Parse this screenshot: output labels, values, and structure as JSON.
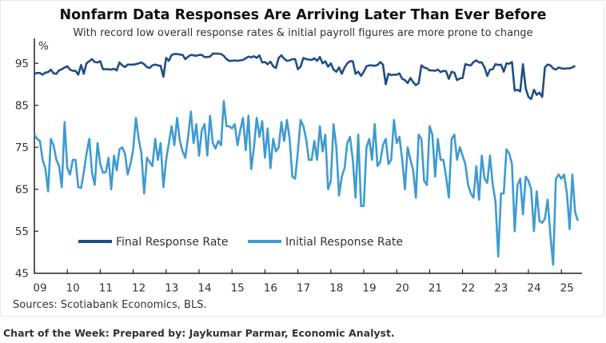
{
  "chart_data": {
    "type": "line",
    "title": "Nonfarm Data Responses Are Arriving Later Than Ever Before",
    "subtitle": "With record low overall response rates & initial payroll figures are more prone to change",
    "ylabel": "%",
    "xlabel": "",
    "ylim": [
      45,
      100
    ],
    "yticks": [
      45,
      55,
      65,
      75,
      85,
      95
    ],
    "xlim": [
      2009,
      2025.75
    ],
    "xtick_labels": [
      "09",
      "10",
      "11",
      "12",
      "13",
      "14",
      "15",
      "16",
      "17",
      "18",
      "19",
      "20",
      "21",
      "22",
      "23",
      "24",
      "25"
    ],
    "x_start": "2009-01",
    "frequency": "monthly",
    "grid": false,
    "legend": "bottom-left",
    "series": [
      {
        "name": "Final Response Rate",
        "color": "#1f4e86",
        "values": [
          92.5,
          92.7,
          92.7,
          92.3,
          92.8,
          92.9,
          93.5,
          92.6,
          92.5,
          93.3,
          93.6,
          94.0,
          94.3,
          93.5,
          93.2,
          93.2,
          92.3,
          94.6,
          92.5,
          95.0,
          95.5,
          96.0,
          95.3,
          95.2,
          95.5,
          93.6,
          93.6,
          93.6,
          93.5,
          93.7,
          93.3,
          95.2,
          94.5,
          94.1,
          94.7,
          94.7,
          94.7,
          94.8,
          95.0,
          95.2,
          94.8,
          94.1,
          93.9,
          94.5,
          94.7,
          94.5,
          94.4,
          91.8,
          96.3,
          95.6,
          97.0,
          97.2,
          97.2,
          97.1,
          97.0,
          96.0,
          96.6,
          97.0,
          96.9,
          96.8,
          97.0,
          97.0,
          96.5,
          96.5,
          96.6,
          97.3,
          97.3,
          97.3,
          97.2,
          96.8,
          96.0,
          95.6,
          95.6,
          95.7,
          95.6,
          95.7,
          95.8,
          96.2,
          96.6,
          96.4,
          96.7,
          96.3,
          96.9,
          95.2,
          95.3,
          94.8,
          95.4,
          94.3,
          93.9,
          96.3,
          96.9,
          96.1,
          95.6,
          95.7,
          96.0,
          96.0,
          93.6,
          94.2,
          96.3,
          96.0,
          95.9,
          95.8,
          96.2,
          95.6,
          96.5,
          95.0,
          95.5,
          94.2,
          95.0,
          93.5,
          93.0,
          94.0,
          92.5,
          94.0,
          95.0,
          95.5,
          95.5,
          92.5,
          93.0,
          92.0,
          93.0,
          94.3,
          94.5,
          94.5,
          94.4,
          94.6,
          95.3,
          94.7,
          90.0,
          92.5,
          92.2,
          92.3,
          92.3,
          92.6,
          91.3,
          91.0,
          90.3,
          91.5,
          90.5,
          89.8,
          90.3,
          94.5,
          94.0,
          93.8,
          93.3,
          93.3,
          93.2,
          93.5,
          92.9,
          93.2,
          93.1,
          91.3,
          93.0,
          92.8,
          91.0,
          91.4,
          91.5,
          94.8,
          94.6,
          94.5,
          95.3,
          95.7,
          95.2,
          95.2,
          94.0,
          92.0,
          93.5,
          93.6,
          94.8,
          94.6,
          94.7,
          93.0,
          95.0,
          94.9,
          95.3,
          88.5,
          88.7,
          88.3,
          94.8,
          89.0,
          87.0,
          86.5,
          88.7,
          87.5,
          88.0,
          87.0,
          94.0,
          94.7,
          94.5,
          93.8,
          93.5,
          94.0,
          93.8,
          93.7,
          93.8,
          93.8,
          94.0,
          94.4
        ]
      },
      {
        "name": "Initial Response Rate",
        "color": "#3f9bd0",
        "values": [
          78,
          77,
          76.5,
          72,
          70,
          64.5,
          77,
          75.5,
          72,
          70.5,
          65.5,
          81,
          70,
          68.5,
          72,
          72,
          65.5,
          65.3,
          69,
          73.5,
          77,
          69,
          66,
          76,
          71,
          69,
          69,
          72.5,
          65,
          73,
          69.5,
          74.5,
          75,
          73.5,
          68.5,
          71,
          74.5,
          82,
          77,
          73.5,
          64,
          72.5,
          71.5,
          70.5,
          77,
          72,
          76,
          65.5,
          72,
          76,
          80,
          75.5,
          82,
          76.5,
          74,
          72.5,
          77.5,
          83.5,
          76,
          80.5,
          73,
          79,
          80.5,
          73,
          82.5,
          76,
          74.7,
          76.5,
          75.5,
          86,
          80,
          80,
          79.5,
          80.5,
          75.5,
          79,
          82,
          74.3,
          82.5,
          69.8,
          75,
          82,
          77.5,
          81.2,
          72.5,
          79.5,
          70,
          77,
          74,
          75,
          81,
          76.5,
          81.5,
          77,
          68,
          67.5,
          74,
          81.5,
          80,
          77,
          72,
          72,
          76.5,
          72,
          80,
          74,
          78,
          65,
          67,
          80.5,
          75,
          63.5,
          68,
          70,
          76,
          77.5,
          72,
          63,
          78,
          61,
          61,
          75,
          77,
          72,
          80.5,
          70.5,
          71.5,
          75.5,
          77,
          71,
          72,
          81.5,
          76,
          77.5,
          72,
          65,
          75,
          72,
          69.5,
          63,
          78,
          77,
          67,
          66,
          80,
          78,
          68,
          77,
          72,
          72,
          68,
          63,
          77,
          78,
          72,
          75,
          73,
          71,
          66,
          64,
          63,
          70.5,
          62.5,
          73,
          67.5,
          66.5,
          73,
          66,
          62,
          49,
          64,
          64,
          74.5,
          73.5,
          71,
          55,
          66,
          67.5,
          59,
          68,
          67,
          65,
          55,
          64.5,
          57.5,
          57,
          58,
          62.5,
          54,
          47,
          67.5,
          68.5,
          67.5,
          68.5,
          64,
          55.5,
          68.5,
          59.5,
          57.5
        ]
      }
    ]
  },
  "source": "Sources: Scotiabank Economics, BLS.",
  "footer": "Chart of the Week: Prepared by: Jaykumar Parmar, Economic Analyst."
}
